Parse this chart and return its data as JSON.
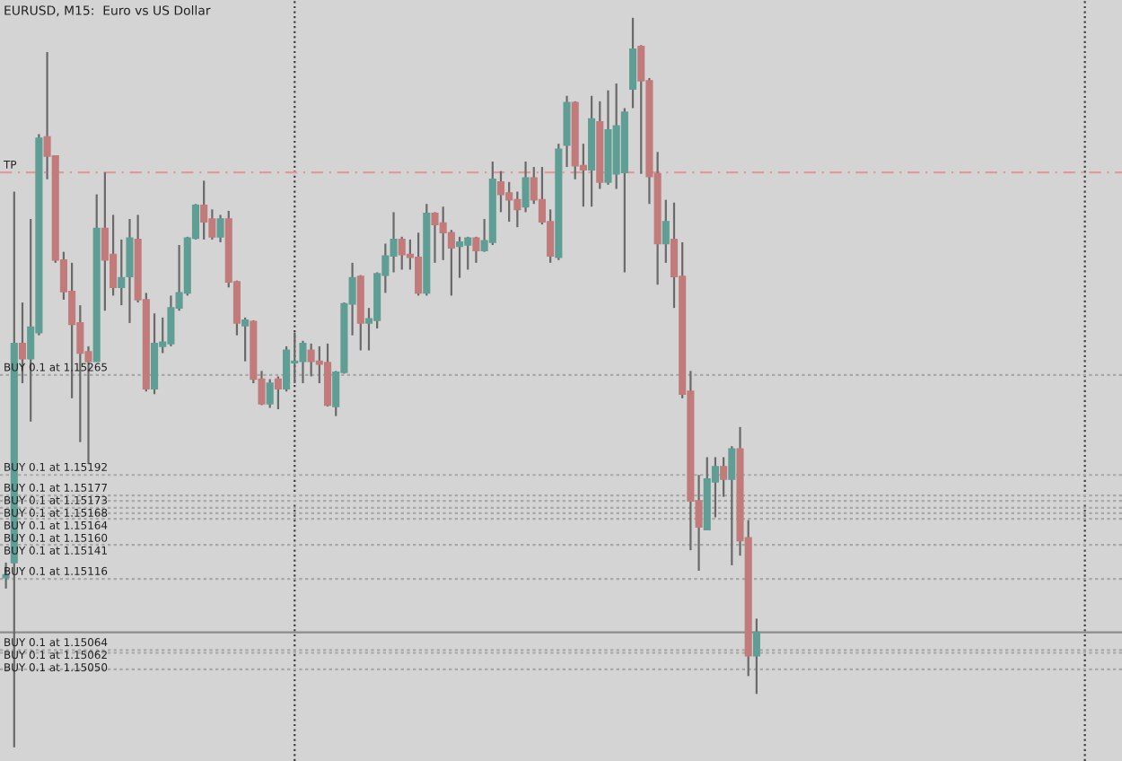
{
  "chart_data": {
    "type": "candlestick",
    "title": "EURUSD, M15:  Euro vs US Dollar",
    "categories": [
      null,
      null,
      null,
      null,
      null,
      null,
      null,
      null,
      null,
      null,
      null,
      null,
      null,
      null,
      null,
      null,
      null,
      null,
      null,
      null,
      null,
      null,
      null,
      null,
      null,
      null,
      null,
      null,
      null,
      null,
      null,
      null,
      null,
      null,
      null,
      null,
      null,
      null,
      null,
      null,
      null,
      null,
      null,
      null,
      null,
      null,
      null,
      null,
      null,
      null,
      null,
      null,
      null,
      null,
      null,
      null,
      null,
      null,
      null,
      null,
      null,
      null,
      null,
      null,
      null,
      null,
      null,
      null,
      null,
      null,
      null,
      null,
      null,
      null,
      null,
      null,
      null,
      null,
      null,
      null,
      null,
      null,
      null,
      null,
      null,
      null,
      null,
      null,
      null,
      null,
      null,
      null
    ],
    "ohlc": [
      [
        1.15117,
        1.15128,
        1.15109,
        1.15119
      ],
      [
        1.15128,
        1.15399,
        1.14993,
        1.15288
      ],
      [
        1.15288,
        1.15318,
        1.15259,
        1.15277
      ],
      [
        1.15277,
        1.15379,
        1.15231,
        1.153
      ],
      [
        1.15296,
        1.15441,
        1.15294,
        1.15438
      ],
      [
        1.15439,
        1.15501,
        1.15408,
        1.15425
      ],
      [
        1.15425,
        1.15425,
        1.15347,
        1.15349
      ],
      [
        1.15349,
        1.15355,
        1.1532,
        1.15326
      ],
      [
        1.15326,
        1.15347,
        1.15248,
        1.15302
      ],
      [
        1.15303,
        1.15316,
        1.15216,
        1.15281
      ],
      [
        1.15282,
        1.15286,
        1.152,
        1.15275
      ],
      [
        1.15275,
        1.15397,
        1.15275,
        1.15372
      ],
      [
        1.15372,
        1.15413,
        1.15312,
        1.15349
      ],
      [
        1.15353,
        1.15382,
        1.15323,
        1.15329
      ],
      [
        1.15329,
        1.15364,
        1.15316,
        1.15336
      ],
      [
        1.15337,
        1.15379,
        1.15303,
        1.15365
      ],
      [
        1.15364,
        1.15382,
        1.15318,
        1.1532
      ],
      [
        1.1532,
        1.15325,
        1.15253,
        1.15255
      ],
      [
        1.15255,
        1.1531,
        1.15251,
        1.15288
      ],
      [
        1.15286,
        1.15307,
        1.15281,
        1.15289
      ],
      [
        1.15288,
        1.15323,
        1.15286,
        1.15314
      ],
      [
        1.15314,
        1.1536,
        1.15312,
        1.15325
      ],
      [
        1.15325,
        1.15366,
        1.15323,
        1.15365
      ],
      [
        1.15365,
        1.1539,
        1.15364,
        1.15389
      ],
      [
        1.15389,
        1.15407,
        1.15364,
        1.15377
      ],
      [
        1.15379,
        1.15386,
        1.15364,
        1.15366
      ],
      [
        1.15366,
        1.15382,
        1.15362,
        1.15379
      ],
      [
        1.15379,
        1.15385,
        1.15329,
        1.15333
      ],
      [
        1.15333,
        1.15334,
        1.15294,
        1.15303
      ],
      [
        1.15301,
        1.15307,
        1.15275,
        1.15305
      ],
      [
        1.15304,
        1.15305,
        1.15259,
        1.15262
      ],
      [
        1.15262,
        1.15268,
        1.15243,
        1.15244
      ],
      [
        1.15244,
        1.15262,
        1.15241,
        1.15259
      ],
      [
        1.15262,
        1.15264,
        1.1524,
        1.15255
      ],
      [
        1.15255,
        1.15286,
        1.15253,
        1.15283
      ],
      [
        1.15274,
        1.15296,
        1.15259,
        1.15275
      ],
      [
        1.15275,
        1.1529,
        1.15259,
        1.15288
      ],
      [
        1.15283,
        1.15288,
        1.15264,
        1.15275
      ],
      [
        1.15275,
        1.15286,
        1.15259,
        1.15273
      ],
      [
        1.15274,
        1.15288,
        1.15242,
        1.15243
      ],
      [
        1.15242,
        1.15268,
        1.15235,
        1.15267
      ],
      [
        1.15267,
        1.15318,
        1.15266,
        1.15317
      ],
      [
        1.15317,
        1.15347,
        1.15294,
        1.15336
      ],
      [
        1.15337,
        1.15338,
        1.15283,
        1.15303
      ],
      [
        1.15303,
        1.15314,
        1.15283,
        1.15306
      ],
      [
        1.15305,
        1.1534,
        1.15299,
        1.15339
      ],
      [
        1.15338,
        1.15361,
        1.15325,
        1.15352
      ],
      [
        1.15352,
        1.15384,
        1.1534,
        1.15364
      ],
      [
        1.15364,
        1.15366,
        1.15342,
        1.15353
      ],
      [
        1.15353,
        1.15364,
        1.15342,
        1.15351
      ],
      [
        1.15351,
        1.15369,
        1.15323,
        1.15325
      ],
      [
        1.15325,
        1.1539,
        1.15323,
        1.15383
      ],
      [
        1.15383,
        1.15384,
        1.15347,
        1.15375
      ],
      [
        1.15376,
        1.15388,
        1.15349,
        1.15369
      ],
      [
        1.15369,
        1.15371,
        1.15323,
        1.15358
      ],
      [
        1.15359,
        1.15366,
        1.15336,
        1.15362
      ],
      [
        1.1536,
        1.15366,
        1.15342,
        1.15365
      ],
      [
        1.15365,
        1.15366,
        1.15347,
        1.15356
      ],
      [
        1.15356,
        1.15379,
        1.15355,
        1.15363
      ],
      [
        1.15362,
        1.15421,
        1.1536,
        1.15408
      ],
      [
        1.15406,
        1.15414,
        1.15384,
        1.15397
      ],
      [
        1.15398,
        1.15406,
        1.15377,
        1.15393
      ],
      [
        1.15393,
        1.15399,
        1.15373,
        1.15386
      ],
      [
        1.15388,
        1.15421,
        1.15384,
        1.15409
      ],
      [
        1.15409,
        1.15417,
        1.1539,
        1.15393
      ],
      [
        1.15393,
        1.15417,
        1.15375,
        1.15377
      ],
      [
        1.15377,
        1.15386,
        1.15347,
        1.15352
      ],
      [
        1.15351,
        1.15434,
        1.15349,
        1.1543
      ],
      [
        1.15433,
        1.15469,
        1.15417,
        1.15464
      ],
      [
        1.15464,
        1.15465,
        1.15408,
        1.15418
      ],
      [
        1.15418,
        1.15434,
        1.15388,
        1.15415
      ],
      [
        1.15415,
        1.15469,
        1.15388,
        1.15452
      ],
      [
        1.1545,
        1.15465,
        1.15401,
        1.15406
      ],
      [
        1.15406,
        1.15473,
        1.15404,
        1.15444
      ],
      [
        1.15412,
        1.15478,
        1.15401,
        1.15447
      ],
      [
        1.15413,
        1.1546,
        1.1534,
        1.15457
      ],
      [
        1.15474,
        1.15526,
        1.1546,
        1.15503
      ],
      [
        1.15505,
        1.15506,
        1.15412,
        1.1548
      ],
      [
        1.1548,
        1.15482,
        1.1539,
        1.1541
      ],
      [
        1.15412,
        1.15428,
        1.15331,
        1.15361
      ],
      [
        1.15361,
        1.15393,
        1.15347,
        1.15377
      ],
      [
        1.15364,
        1.15391,
        1.15314,
        1.15337
      ],
      [
        1.15337,
        1.15362,
        1.15248,
        1.15251
      ],
      [
        1.15253,
        1.15268,
        1.15137,
        1.15173
      ],
      [
        1.15173,
        1.15192,
        1.15122,
        1.15154
      ],
      [
        1.15152,
        1.15205,
        1.15152,
        1.15189
      ],
      [
        1.15187,
        1.15205,
        1.15161,
        1.15198
      ],
      [
        1.15198,
        1.15205,
        1.15176,
        1.15189
      ],
      [
        1.15189,
        1.15213,
        1.15126,
        1.15211
      ],
      [
        1.15211,
        1.15227,
        1.15133,
        1.15144
      ],
      [
        1.15146,
        1.15159,
        1.15045,
        1.1506
      ],
      [
        1.1506,
        1.15087,
        1.15032,
        1.15077
      ]
    ],
    "colors": [
      "#5f9e94",
      "#5f9e94",
      "#c27b7b",
      "#5f9e94",
      "#5f9e94",
      "#c27b7b",
      "#c27b7b",
      "#c27b7b",
      "#c27b7b",
      "#c27b7b",
      "#c27b7b",
      "#5f9e94",
      "#c27b7b",
      "#c27b7b",
      "#5f9e94",
      "#5f9e94",
      "#c27b7b",
      "#c27b7b",
      "#5f9e94",
      "#5f9e94",
      "#5f9e94",
      "#5f9e94",
      "#5f9e94",
      "#5f9e94",
      "#c27b7b",
      "#c27b7b",
      "#5f9e94",
      "#c27b7b",
      "#c27b7b",
      "#5f9e94",
      "#c27b7b",
      "#c27b7b",
      "#5f9e94",
      "#c27b7b",
      "#5f9e94",
      "#5f9e94",
      "#5f9e94",
      "#c27b7b",
      "#c27b7b",
      "#c27b7b",
      "#5f9e94",
      "#5f9e94",
      "#5f9e94",
      "#c27b7b",
      "#5f9e94",
      "#5f9e94",
      "#5f9e94",
      "#5f9e94",
      "#c27b7b",
      "#c27b7b",
      "#c27b7b",
      "#5f9e94",
      "#c27b7b",
      "#c27b7b",
      "#c27b7b",
      "#5f9e94",
      "#5f9e94",
      "#c27b7b",
      "#5f9e94",
      "#5f9e94",
      "#c27b7b",
      "#c27b7b",
      "#c27b7b",
      "#5f9e94",
      "#c27b7b",
      "#c27b7b",
      "#c27b7b",
      "#5f9e94",
      "#5f9e94",
      "#c27b7b",
      "#c27b7b",
      "#5f9e94",
      "#c27b7b",
      "#5f9e94",
      "#5f9e94",
      "#5f9e94",
      "#5f9e94",
      "#c27b7b",
      "#c27b7b",
      "#c27b7b",
      "#5f9e94",
      "#c27b7b",
      "#c27b7b",
      "#c27b7b",
      "#c27b7b",
      "#5f9e94",
      "#5f9e94",
      "#c27b7b",
      "#5f9e94",
      "#c27b7b",
      "#c27b7b",
      "#5f9e94"
    ],
    "ylim": [
      1.14983,
      1.15539
    ],
    "grid": false,
    "ref_lines": [
      {
        "axis": "y",
        "value": 1.15413,
        "label": "TP",
        "color": "#e09a9a",
        "line_style": "dashed"
      },
      {
        "axis": "y",
        "value": 1.15265,
        "label": "BUY 0.1 at 1.15265",
        "color": "#a8a8a8",
        "line_style": "dotted"
      },
      {
        "axis": "y",
        "value": 1.15192,
        "label": "BUY 0.1 at 1.15192",
        "color": "#a8a8a8",
        "line_style": "dotted"
      },
      {
        "axis": "y",
        "value": 1.15177,
        "label": "BUY 0.1 at 1.15177",
        "color": "#a8a8a8",
        "line_style": "dotted"
      },
      {
        "axis": "y",
        "value": 1.15173,
        "label": "BUY 0.1 at 1.15173",
        "color": "#a8a8a8",
        "line_style": "dotted"
      },
      {
        "axis": "y",
        "value": 1.15168,
        "label": "BUY 0.1 at 1.15168",
        "color": "#a8a8a8",
        "line_style": "dotted"
      },
      {
        "axis": "y",
        "value": 1.15164,
        "label": "BUY 0.1 at 1.15164",
        "color": "#a8a8a8",
        "line_style": "dotted"
      },
      {
        "axis": "y",
        "value": 1.1516,
        "label": "BUY 0.1 at 1.15160",
        "color": "#a8a8a8",
        "line_style": "dotted"
      },
      {
        "axis": "y",
        "value": 1.15141,
        "label": "BUY 0.1 at 1.15141",
        "color": "#a8a8a8",
        "line_style": "dotted"
      },
      {
        "axis": "y",
        "value": 1.15116,
        "label": "BUY 0.1 at 1.15116",
        "color": "#a8a8a8",
        "line_style": "dotted"
      },
      {
        "axis": "y",
        "value": 1.15077,
        "color": "#8c8c8c",
        "line_style": "solid"
      },
      {
        "axis": "y",
        "value": 1.15064,
        "label": "BUY 0.1 at 1.15064",
        "color": "#a8a8a8",
        "line_style": "dotted"
      },
      {
        "axis": "y",
        "value": 1.15062,
        "label": "BUY 0.1 at 1.15062",
        "color": "#a8a8a8",
        "line_style": "dotted"
      },
      {
        "axis": "y",
        "value": 1.1505,
        "label": "BUY 0.1 at 1.15050",
        "color": "#a8a8a8",
        "line_style": "dotted"
      }
    ]
  }
}
